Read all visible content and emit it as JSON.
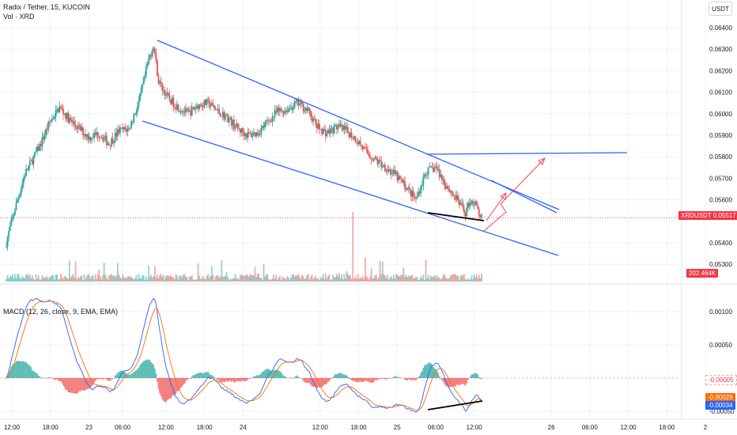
{
  "header": {
    "symbol_line": "Radix / Tether, 15, KUCOIN",
    "volume_label": "Vol · XRD",
    "currency": "USDT"
  },
  "macd": {
    "title": "MACD (12, 26, close, 9, EMA, EMA)",
    "badges": [
      "-0.00005",
      "-0.00029",
      "-0.00034"
    ]
  },
  "price_badge": {
    "symbol": "XRDUSDT",
    "value": "0.05517"
  },
  "volume_badge": "202.464K",
  "colors": {
    "up": "#26a69a",
    "down": "#ef5350",
    "trend": "#2962ff",
    "macd": "#2962ff",
    "signal": "#ff6d00",
    "arrow": "#f23645"
  },
  "chart_data": [
    {
      "type": "candlestick",
      "title": "Radix / Tether, 15, KUCOIN",
      "y_ticks": [
        "0.06400",
        "0.06300",
        "0.06200",
        "0.06100",
        "0.06000",
        "0.05900",
        "0.05800",
        "0.05700",
        "0.05600",
        "0.05400",
        "0.05300"
      ],
      "x_ticks": [
        "12:00",
        "18:00",
        "23",
        "06:00",
        "12:00",
        "18:00",
        "24",
        "12:00",
        "18:00",
        "25",
        "06:00",
        "12:00",
        "26",
        "06:00",
        "12:00",
        "18:00",
        "2"
      ],
      "ylim": [
        0.0527,
        0.0646
      ],
      "key_points": [
        {
          "x": "day 23 ~11:00",
          "y": 0.064,
          "note": "high"
        },
        {
          "x": "day 25 ~12:30",
          "y": 0.05517,
          "note": "last price"
        }
      ],
      "last_price": 0.05517
    },
    {
      "type": "line",
      "title": "MACD (12, 26, close, 9, EMA, EMA)",
      "y_ticks": [
        "0.00100",
        "0.00050",
        "-0.00050"
      ],
      "ylim": [
        -0.0006,
        0.0013
      ],
      "series": [
        {
          "name": "MACD",
          "last": -0.00034
        },
        {
          "name": "Signal",
          "last": -0.00029
        },
        {
          "name": "Histogram",
          "last": -5e-05
        }
      ]
    }
  ]
}
